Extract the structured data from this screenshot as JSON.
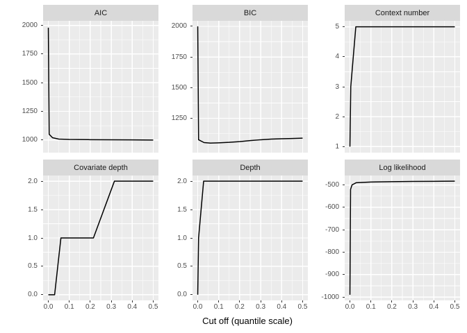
{
  "figure": {
    "xlabel": "Cut off (quantile scale)",
    "x_axis": {
      "domain": [
        -0.025,
        0.525
      ],
      "tick_values": [
        0,
        0.1,
        0.2,
        0.3,
        0.4,
        0.5
      ],
      "tick_labels": [
        "0.0",
        "0.1",
        "0.2",
        "0.3",
        "0.4",
        "0.5"
      ],
      "minor_values": [
        0.05,
        0.15,
        0.25,
        0.35,
        0.45
      ]
    },
    "layout": {
      "grid": "on",
      "facets": "2 rows x 3 columns",
      "legend": "none"
    },
    "colors": {
      "background": "#ffffff",
      "panel_bg": "#ebebeb",
      "strip_bg": "#d9d9d9",
      "strip_text": "#1a1a1a",
      "grid": "#ffffff",
      "line": "#000000",
      "tick_label": "#4d4d4d",
      "tick_mark": "#333333",
      "axis_title": "#000000"
    }
  },
  "chart_data": [
    {
      "type": "line",
      "title": "AIC",
      "y_domain": [
        890,
        2040
      ],
      "y_ticks": {
        "values": [
          2000,
          1750,
          1500,
          1250,
          1000
        ],
        "labels": [
          "2000",
          "1750",
          "1500",
          "1250",
          "1000"
        ]
      },
      "y_minor": [
        1125,
        1375,
        1625,
        1875
      ],
      "points": [
        [
          0,
          1980
        ],
        [
          0.004,
          1050
        ],
        [
          0.02,
          1020
        ],
        [
          0.05,
          1008
        ],
        [
          0.1,
          1005
        ],
        [
          0.2,
          1003
        ],
        [
          0.3,
          1002
        ],
        [
          0.4,
          1001
        ],
        [
          0.5,
          1000
        ]
      ]
    },
    {
      "type": "line",
      "title": "BIC",
      "y_domain": [
        970,
        2045
      ],
      "y_ticks": {
        "values": [
          2000,
          1750,
          1500,
          1250
        ],
        "labels": [
          "2000",
          "1750",
          "1500",
          "1250"
        ]
      },
      "y_minor": [
        1125,
        1375,
        1625,
        1875
      ],
      "points": [
        [
          0,
          2000
        ],
        [
          0.004,
          1075
        ],
        [
          0.03,
          1052
        ],
        [
          0.06,
          1048
        ],
        [
          0.1,
          1050
        ],
        [
          0.15,
          1054
        ],
        [
          0.2,
          1060
        ],
        [
          0.25,
          1068
        ],
        [
          0.3,
          1075
        ],
        [
          0.35,
          1080
        ],
        [
          0.4,
          1083
        ],
        [
          0.45,
          1085
        ],
        [
          0.5,
          1088
        ]
      ]
    },
    {
      "type": "line",
      "title": "Context number",
      "y_domain": [
        0.8,
        5.2
      ],
      "y_ticks": {
        "values": [
          5,
          4,
          3,
          2,
          1
        ],
        "labels": [
          "5",
          "4",
          "3",
          "2",
          "1"
        ]
      },
      "y_minor": [
        1.5,
        2.5,
        3.5,
        4.5
      ],
      "points": [
        [
          0,
          1
        ],
        [
          0.004,
          3
        ],
        [
          0.028,
          5
        ],
        [
          0.5,
          5
        ]
      ]
    },
    {
      "type": "line",
      "title": "Covariate depth",
      "y_domain": [
        -0.1,
        2.1
      ],
      "y_ticks": {
        "values": [
          2,
          1.5,
          1,
          0.5,
          0
        ],
        "labels": [
          "2.0",
          "1.5",
          "1.0",
          "0.5",
          "0.0"
        ]
      },
      "y_minor": [
        0.25,
        0.75,
        1.25,
        1.75
      ],
      "points": [
        [
          0,
          0
        ],
        [
          0.03,
          0
        ],
        [
          0.06,
          1
        ],
        [
          0.215,
          1
        ],
        [
          0.315,
          2
        ],
        [
          0.5,
          2
        ]
      ]
    },
    {
      "type": "line",
      "title": "Depth",
      "y_domain": [
        -0.1,
        2.1
      ],
      "y_ticks": {
        "values": [
          2,
          1.5,
          1,
          0.5,
          0
        ],
        "labels": [
          "2.0",
          "1.5",
          "1.0",
          "0.5",
          "0.0"
        ]
      },
      "y_minor": [
        0.25,
        0.75,
        1.25,
        1.75
      ],
      "points": [
        [
          0,
          0
        ],
        [
          0.004,
          1
        ],
        [
          0.028,
          2
        ],
        [
          0.5,
          2
        ]
      ]
    },
    {
      "type": "line",
      "title": "Log likelihood",
      "y_domain": [
        -1015,
        -458
      ],
      "y_ticks": {
        "values": [
          -500,
          -600,
          -700,
          -800,
          -900,
          -1000
        ],
        "labels": [
          "-500",
          "-600",
          "-700",
          "-800",
          "-900",
          "-1000"
        ]
      },
      "y_minor": [
        -950,
        -850,
        -750,
        -650,
        -550
      ],
      "points": [
        [
          0,
          -990
        ],
        [
          0.003,
          -520
        ],
        [
          0.01,
          -500
        ],
        [
          0.03,
          -490
        ],
        [
          0.1,
          -487
        ],
        [
          0.2,
          -485.5
        ],
        [
          0.3,
          -484.5
        ],
        [
          0.4,
          -484
        ],
        [
          0.5,
          -483
        ]
      ]
    }
  ]
}
